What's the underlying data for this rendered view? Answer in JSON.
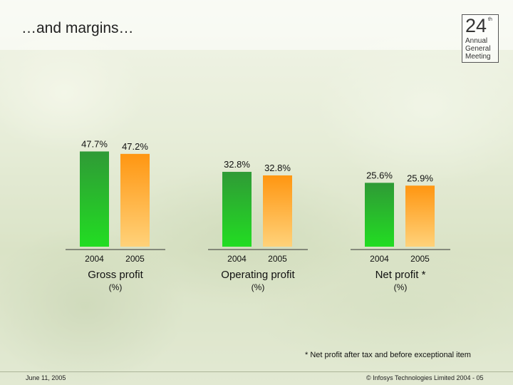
{
  "title": "…and margins…",
  "logo": {
    "number": "24",
    "superscript": "th",
    "lines": [
      "Annual",
      "General",
      "Meeting"
    ]
  },
  "footnote": "* Net profit after tax and before exceptional item",
  "footer": {
    "date": "June 11, 2005",
    "copyright": "© Infosys Technologies Limited 2004 - 05"
  },
  "colors": {
    "bar_2004": "#2db82d",
    "bar_2005": "#ff9a1a"
  },
  "chart_data": [
    {
      "type": "bar",
      "title": "Gross profit",
      "unit": "(%)",
      "categories": [
        "2004",
        "2005"
      ],
      "values": [
        47.7,
        47.2
      ],
      "value_labels": [
        "47.7%",
        "47.2%"
      ]
    },
    {
      "type": "bar",
      "title": "Operating profit",
      "unit": "(%)",
      "categories": [
        "2004",
        "2005"
      ],
      "values": [
        32.8,
        32.8
      ],
      "value_labels": [
        "32.8%",
        "32.8%"
      ]
    },
    {
      "type": "bar",
      "title": "Net profit *",
      "unit": "(%)",
      "categories": [
        "2004",
        "2005"
      ],
      "values": [
        25.6,
        25.9
      ],
      "value_labels": [
        "25.6%",
        "25.9%"
      ]
    }
  ]
}
